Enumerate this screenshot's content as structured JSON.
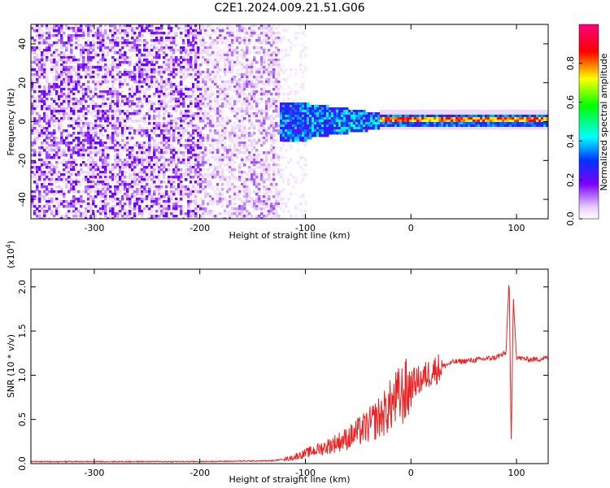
{
  "figure": {
    "title": "C2E1.2024.009.21.51.G06"
  },
  "chart_data": [
    {
      "type": "heatmap",
      "xlabel": "Height of straight line (km)",
      "ylabel": "Frequency (Hz)",
      "xlim": [
        -360,
        130
      ],
      "ylim": [
        -50,
        50
      ],
      "x_ticks": [
        -300,
        -200,
        -100,
        0,
        100
      ],
      "y_ticks": [
        -40,
        -20,
        0,
        20,
        40
      ],
      "colorbar": {
        "label": "Normalized spectral amplitude",
        "range": [
          0,
          1
        ],
        "ticks": [
          "0.0",
          "0.2",
          "0.4",
          "0.6",
          "0.8"
        ],
        "colormap": [
          "#ffffff",
          "#e8ccff",
          "#7a00ff",
          "#0033ff",
          "#00ffff",
          "#00ff00",
          "#ffff00",
          "#ff0000",
          "#ff0080"
        ]
      },
      "regions": [
        {
          "x": [
            -360,
            -125
          ],
          "freq_spread_hz": 50,
          "amplitude": 0.15,
          "note_kind": "broadband noise"
        },
        {
          "x": [
            -125,
            -30
          ],
          "freq_center_hz": 0,
          "freq_spread_hz": 8,
          "amplitude": 0.35
        },
        {
          "x": [
            -30,
            130
          ],
          "freq_center_hz": 1,
          "freq_spread_hz": 2,
          "amplitude": 0.85
        }
      ]
    },
    {
      "type": "line",
      "xlabel": "Height of straight line (km)",
      "ylabel": "SNR (10 * v/v)",
      "y_scale_label": "(x10",
      "y_scale_exp": "4",
      "y_scale_close": ")",
      "xlim": [
        -360,
        130
      ],
      "ylim": [
        0,
        2.2
      ],
      "x_ticks": [
        -300,
        -200,
        -100,
        0,
        100
      ],
      "y_ticks": [
        "0.0",
        "0.5",
        "1.0",
        "1.5",
        "2.0"
      ],
      "color": "#ee2222",
      "series": [
        {
          "x": [
            -360,
            -300,
            -200,
            -130,
            -115,
            -100,
            -80,
            -60,
            -40,
            -25,
            -15,
            -5,
            0,
            10,
            20,
            30,
            40,
            60,
            80,
            90,
            93,
            95,
            97,
            100,
            110,
            120,
            130
          ],
          "y": [
            0.02,
            0.02,
            0.02,
            0.03,
            0.06,
            0.12,
            0.2,
            0.3,
            0.45,
            0.6,
            0.75,
            0.85,
            0.9,
            0.95,
            1.05,
            1.1,
            1.15,
            1.17,
            1.2,
            1.25,
            2.1,
            0.2,
            1.9,
            1.2,
            1.18,
            1.18,
            1.2
          ]
        }
      ]
    }
  ]
}
